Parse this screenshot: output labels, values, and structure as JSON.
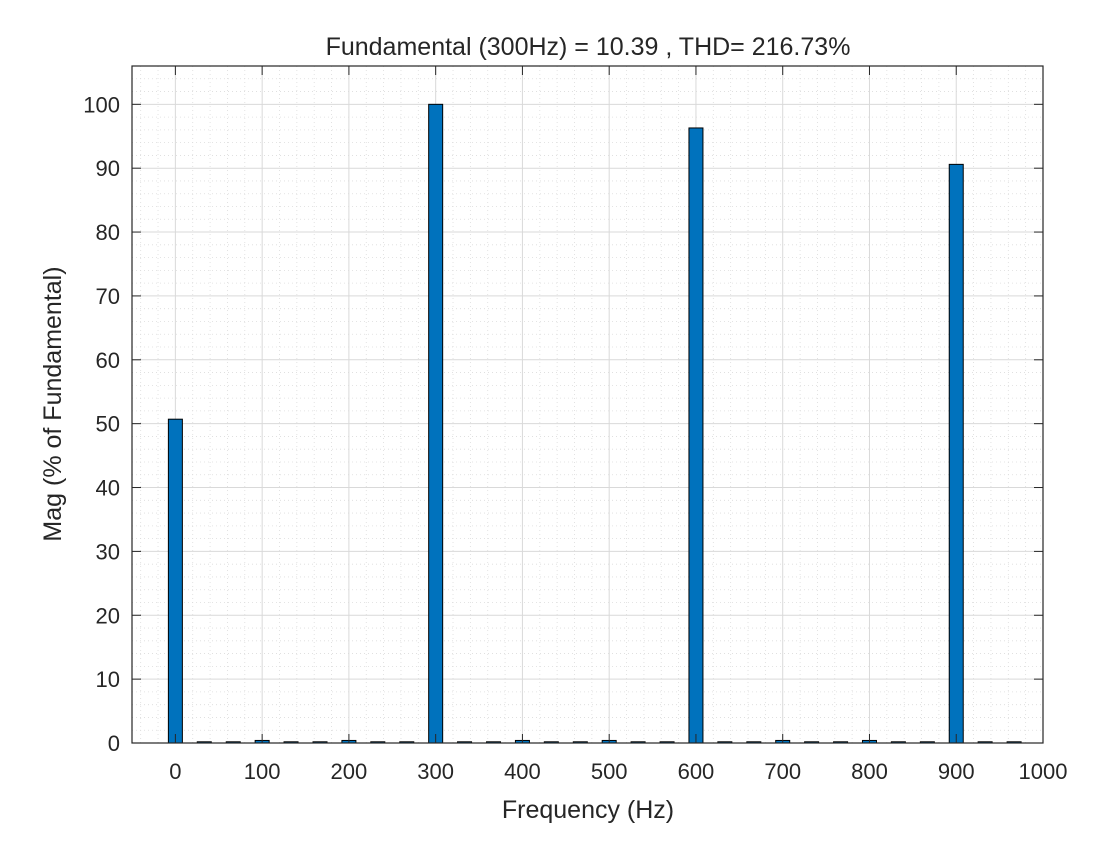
{
  "chart_data": {
    "type": "bar",
    "title": "Fundamental (300Hz) = 10.39 , THD= 216.73%",
    "xlabel": "Frequency (Hz)",
    "ylabel": "Mag (% of Fundamental)",
    "xlim": [
      -50,
      1000
    ],
    "ylim": [
      0,
      100
    ],
    "x_ticks": [
      0,
      100,
      200,
      300,
      400,
      500,
      600,
      700,
      800,
      900,
      1000
    ],
    "y_ticks": [
      0,
      10,
      20,
      30,
      40,
      50,
      60,
      70,
      80,
      90,
      100
    ],
    "grid": true,
    "minor_grid": true,
    "bar_color": "#0072BD",
    "bar_edge_color": "#000000",
    "series": [
      {
        "x": [
          0,
          33.3,
          66.7,
          100,
          133.3,
          166.7,
          200,
          233.3,
          266.7,
          300,
          333.3,
          366.7,
          400,
          433.3,
          466.7,
          500,
          533.3,
          566.7,
          600,
          633.3,
          666.7,
          700,
          733.3,
          766.7,
          800,
          833.3,
          866.7,
          900,
          933.3,
          966.7
        ],
        "values": [
          50.7,
          0.1,
          0.1,
          0.4,
          0.1,
          0.1,
          0.4,
          0.1,
          0.1,
          100,
          0.1,
          0.1,
          0.4,
          0.1,
          0.1,
          0.4,
          0.1,
          0.1,
          96.3,
          0.1,
          0.1,
          0.4,
          0.1,
          0.1,
          0.4,
          0.1,
          0.1,
          90.6,
          0.1,
          0.1
        ]
      }
    ]
  }
}
